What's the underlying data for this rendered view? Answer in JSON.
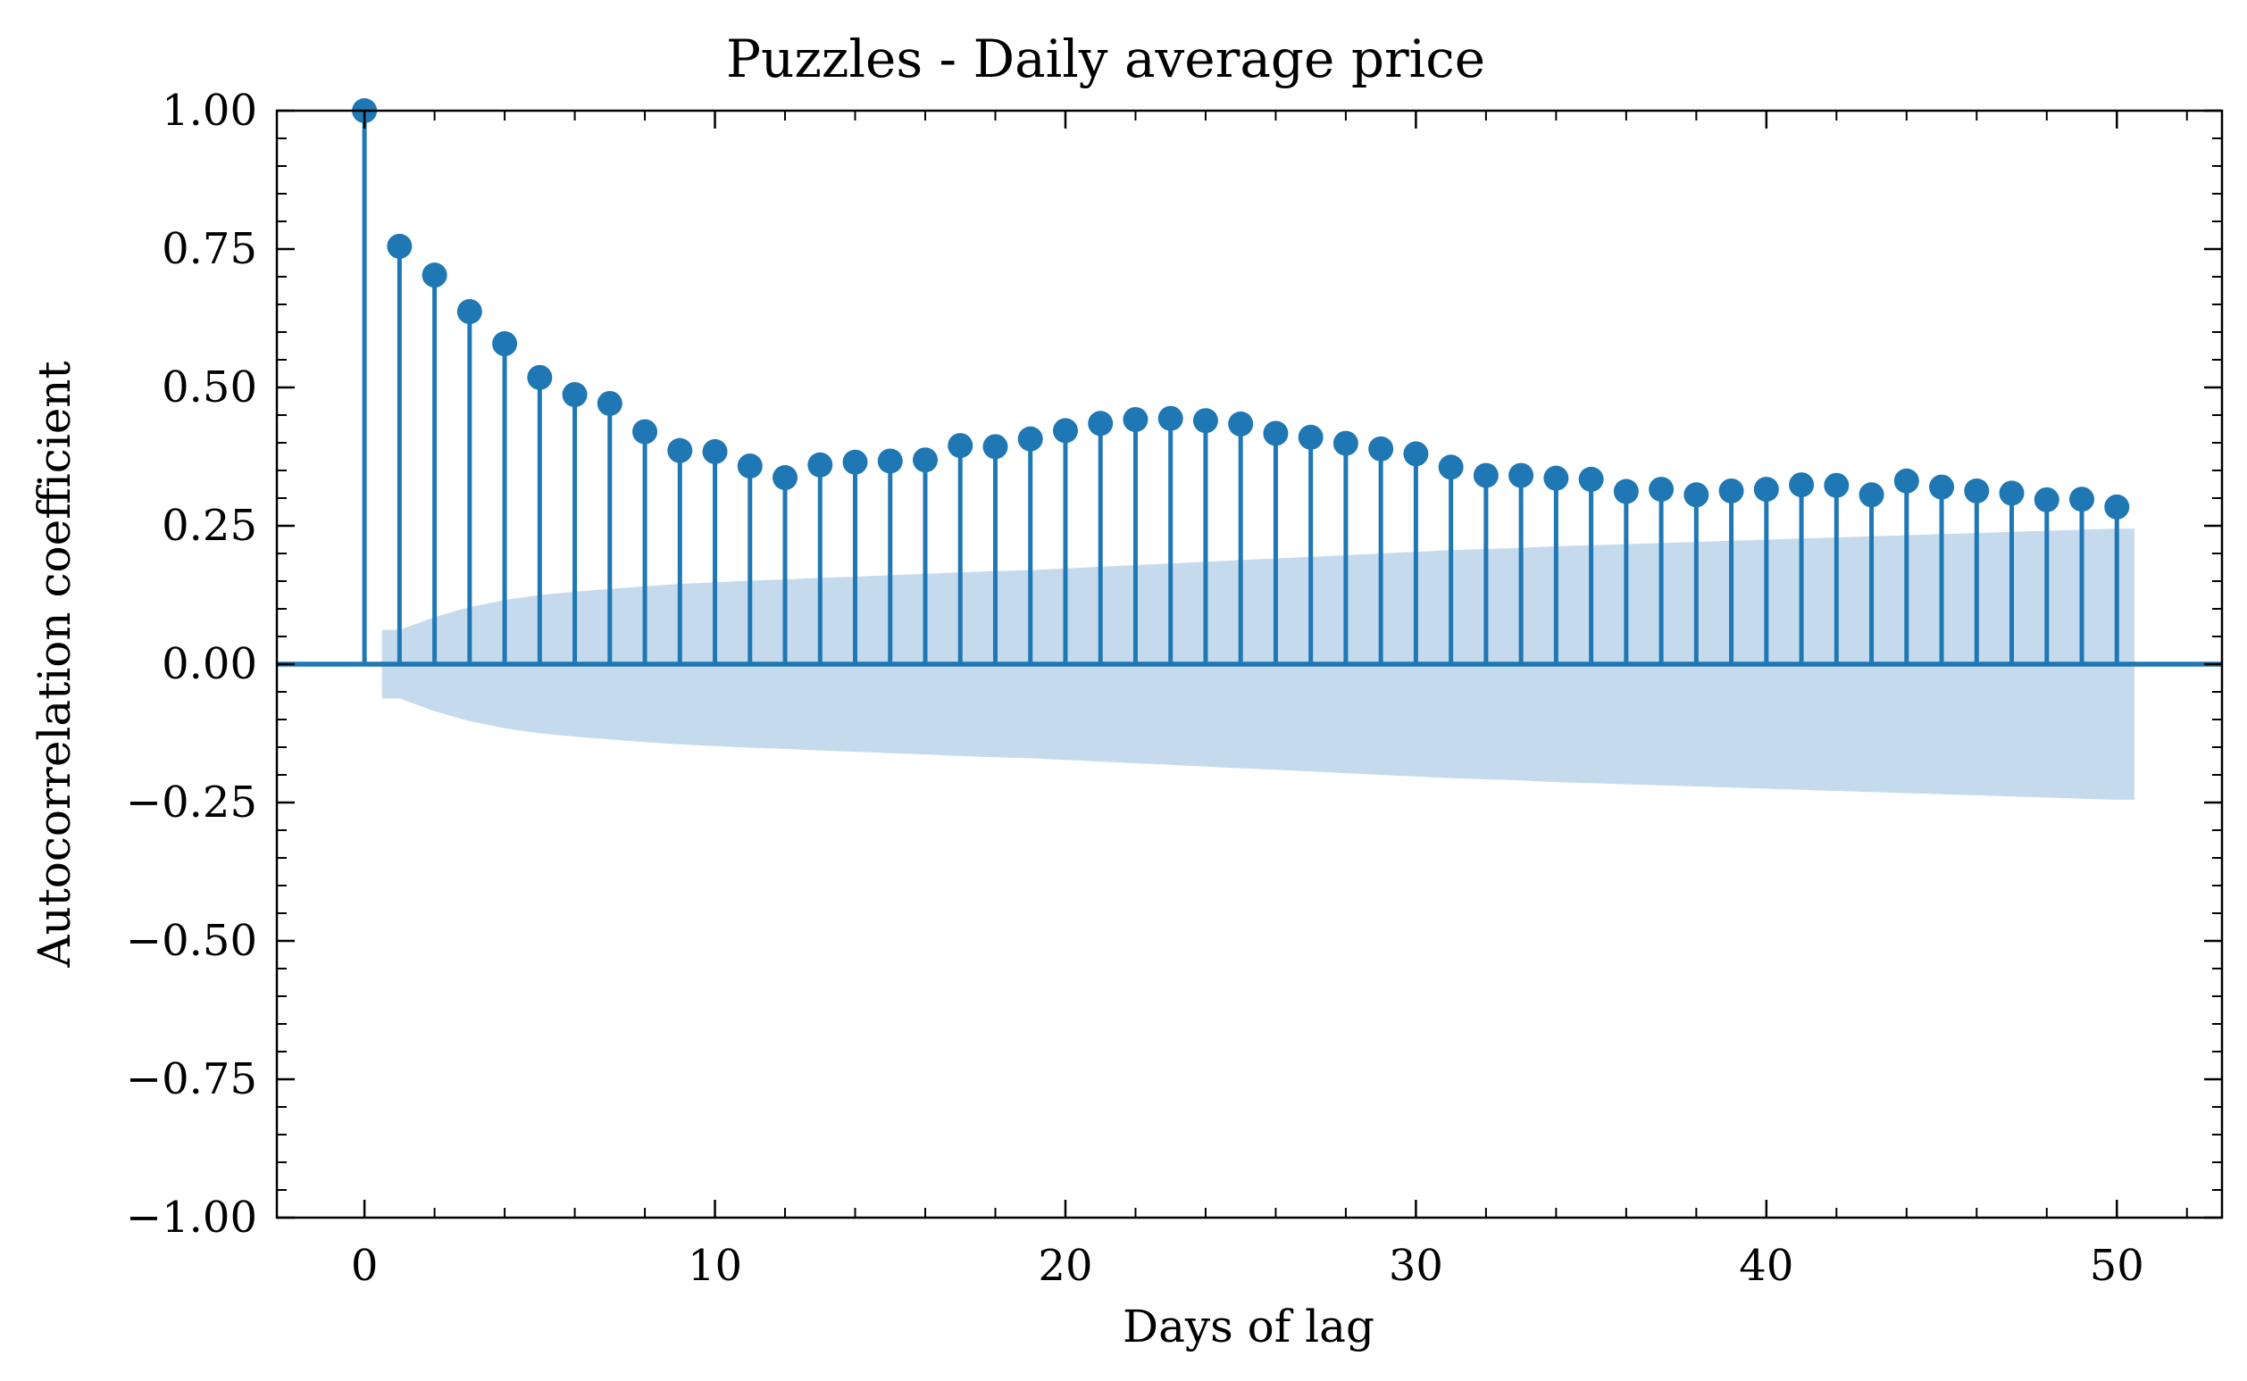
{
  "chart_data": {
    "type": "stem",
    "title": "Puzzles - Daily average price",
    "xlabel": "Days of lag",
    "ylabel": "Autocorrelation coefficient",
    "xlim": [
      -2.5,
      53
    ],
    "ylim": [
      -1.0,
      1.0
    ],
    "xticks": [
      0,
      10,
      20,
      30,
      40,
      50
    ],
    "yticks": [
      -1.0,
      -0.75,
      -0.5,
      -0.25,
      0.0,
      0.25,
      0.5,
      0.75,
      1.0
    ],
    "xtick_labels": [
      "0",
      "10",
      "20",
      "30",
      "40",
      "50"
    ],
    "ytick_labels": [
      "−1.00",
      "−0.75",
      "−0.50",
      "−0.25",
      "0.00",
      "0.25",
      "0.50",
      "0.75",
      "1.00"
    ],
    "grid": false,
    "series_color": "#1f77b4",
    "confidence_color": "#c5dbed",
    "lags": [
      0,
      1,
      2,
      3,
      4,
      5,
      6,
      7,
      8,
      9,
      10,
      11,
      12,
      13,
      14,
      15,
      16,
      17,
      18,
      19,
      20,
      21,
      22,
      23,
      24,
      25,
      26,
      27,
      28,
      29,
      30,
      31,
      32,
      33,
      34,
      35,
      36,
      37,
      38,
      39,
      40,
      41,
      42,
      43,
      44,
      45,
      46,
      47,
      48,
      49,
      50
    ],
    "values": [
      1.0,
      0.755,
      0.703,
      0.637,
      0.579,
      0.518,
      0.487,
      0.471,
      0.42,
      0.386,
      0.384,
      0.358,
      0.337,
      0.36,
      0.365,
      0.367,
      0.369,
      0.395,
      0.393,
      0.407,
      0.422,
      0.435,
      0.442,
      0.444,
      0.44,
      0.434,
      0.417,
      0.41,
      0.399,
      0.389,
      0.38,
      0.356,
      0.341,
      0.341,
      0.336,
      0.334,
      0.312,
      0.316,
      0.306,
      0.313,
      0.316,
      0.324,
      0.323,
      0.306,
      0.331,
      0.32,
      0.313,
      0.309,
      0.297,
      0.298,
      0.284
    ],
    "confidence_band": {
      "x": [
        0.5,
        1,
        2,
        3,
        4,
        5,
        6,
        7,
        8,
        9,
        10,
        11,
        12,
        13,
        14,
        15,
        16,
        17,
        18,
        19,
        20,
        21,
        22,
        23,
        24,
        25,
        26,
        27,
        28,
        29,
        30,
        31,
        32,
        33,
        34,
        35,
        36,
        37,
        38,
        39,
        40,
        41,
        42,
        43,
        44,
        45,
        46,
        47,
        48,
        49,
        50,
        50.5
      ],
      "upper": [
        0.062,
        0.062,
        0.085,
        0.103,
        0.116,
        0.125,
        0.131,
        0.136,
        0.141,
        0.145,
        0.148,
        0.151,
        0.153,
        0.156,
        0.158,
        0.161,
        0.163,
        0.166,
        0.168,
        0.17,
        0.173,
        0.176,
        0.179,
        0.182,
        0.185,
        0.188,
        0.191,
        0.194,
        0.197,
        0.2,
        0.203,
        0.206,
        0.208,
        0.21,
        0.213,
        0.215,
        0.217,
        0.219,
        0.221,
        0.223,
        0.225,
        0.227,
        0.229,
        0.231,
        0.233,
        0.235,
        0.237,
        0.239,
        0.241,
        0.243,
        0.245,
        0.245
      ]
    }
  }
}
